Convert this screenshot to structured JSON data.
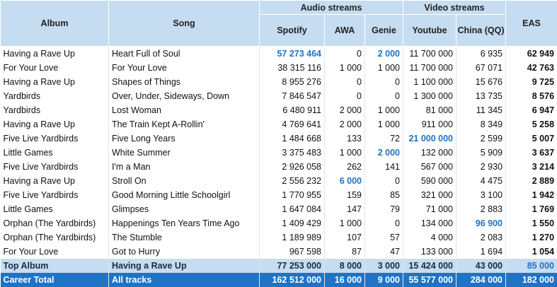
{
  "headers": {
    "album": "Album",
    "song": "Song",
    "audio_group": "Audio streams",
    "video_group": "Video streams",
    "spotify": "Spotify",
    "awa": "AWA",
    "genie": "Genie",
    "youtube": "Youtube",
    "china": "China (QQ)",
    "eas": "EAS"
  },
  "rows": [
    {
      "album": "Having a Rave Up",
      "song": "Heart Full of Soul",
      "spotify": "57 273 464",
      "awa": "0",
      "genie": "2 000",
      "youtube": "11 700 000",
      "china": "6 935",
      "eas": "62 949"
    },
    {
      "album": "For Your Love",
      "song": "For Your Love",
      "spotify": "38 315 116",
      "awa": "1 000",
      "genie": "1 000",
      "youtube": "11 700 000",
      "china": "67 071",
      "eas": "42 763"
    },
    {
      "album": "Having a Rave Up",
      "song": "Shapes of Things",
      "spotify": "8 955 276",
      "awa": "0",
      "genie": "0",
      "youtube": "1 100 000",
      "china": "15 676",
      "eas": "9 725"
    },
    {
      "album": "Yardbirds",
      "song": "Over, Under, Sideways, Down",
      "spotify": "7 846 547",
      "awa": "0",
      "genie": "0",
      "youtube": "1 300 000",
      "china": "13 735",
      "eas": "8 576"
    },
    {
      "album": "Yardbirds",
      "song": "Lost Woman",
      "spotify": "6 480 911",
      "awa": "2 000",
      "genie": "1 000",
      "youtube": "81 000",
      "china": "11 345",
      "eas": "6 947"
    },
    {
      "album": "Having a Rave Up",
      "song": "The Train Kept A-Rollin'",
      "spotify": "4 769 641",
      "awa": "2 000",
      "genie": "1 000",
      "youtube": "911 000",
      "china": "8 349",
      "eas": "5 258"
    },
    {
      "album": "Five Live Yardbirds",
      "song": "Five Long Years",
      "spotify": "1 484 668",
      "awa": "133",
      "genie": "72",
      "youtube": "21 000 000",
      "china": "2 599",
      "eas": "5 007"
    },
    {
      "album": "Little Games",
      "song": "White Summer",
      "spotify": "3 375 483",
      "awa": "1 000",
      "genie": "2 000",
      "youtube": "132 000",
      "china": "5 909",
      "eas": "3 637"
    },
    {
      "album": "Five Live Yardbirds",
      "song": "I'm a Man",
      "spotify": "2 926 058",
      "awa": "262",
      "genie": "141",
      "youtube": "567 000",
      "china": "2 930",
      "eas": "3 214"
    },
    {
      "album": "Having a Rave Up",
      "song": "Stroll On",
      "spotify": "2 556 232",
      "awa": "6 000",
      "genie": "0",
      "youtube": "590 000",
      "china": "4 475",
      "eas": "2 889"
    },
    {
      "album": "Five Live Yardbirds",
      "song": "Good Morning Little Schoolgirl",
      "spotify": "1 770 955",
      "awa": "159",
      "genie": "85",
      "youtube": "321 000",
      "china": "3 100",
      "eas": "1 942"
    },
    {
      "album": "Little Games",
      "song": "Glimpses",
      "spotify": "1 647 084",
      "awa": "147",
      "genie": "79",
      "youtube": "71 000",
      "china": "2 883",
      "eas": "1 769"
    },
    {
      "album": "Orphan (The Yardbirds)",
      "song": "Happenings Ten Years Time Ago",
      "spotify": "1 409 429",
      "awa": "1 000",
      "genie": "0",
      "youtube": "134 000",
      "china": "96 900",
      "eas": "1 550"
    },
    {
      "album": "Orphan (The Yardbirds)",
      "song": "The Stumble",
      "spotify": "1 189 989",
      "awa": "107",
      "genie": "57",
      "youtube": "4 000",
      "china": "2 083",
      "eas": "1 270"
    },
    {
      "album": "For Your Love",
      "song": "Got to Hurry",
      "spotify": "967 598",
      "awa": "87",
      "genie": "47",
      "youtube": "133 000",
      "china": "1 694",
      "eas": "1 054"
    }
  ],
  "highlights": [
    {
      "row": 0,
      "col": "spotify"
    },
    {
      "row": 0,
      "col": "genie"
    },
    {
      "row": 6,
      "col": "youtube"
    },
    {
      "row": 7,
      "col": "genie"
    },
    {
      "row": 9,
      "col": "awa"
    },
    {
      "row": 12,
      "col": "china"
    }
  ],
  "top_album": {
    "label": "Top Album",
    "song": "Having a Rave Up",
    "spotify": "77 253 000",
    "awa": "8 000",
    "genie": "3 000",
    "youtube": "15 424 000",
    "china": "43 000",
    "eas": "85 000"
  },
  "career_total": {
    "label": "Career Total",
    "song": "All tracks",
    "spotify": "162 512 000",
    "awa": "16 000",
    "genie": "9 000",
    "youtube": "55 577 000",
    "china": "284 000",
    "eas": "182 000"
  },
  "colors": {
    "header_bg": "#c6dcf1",
    "highlight": "#1f73c4",
    "career_bg": "#1f73c4"
  }
}
